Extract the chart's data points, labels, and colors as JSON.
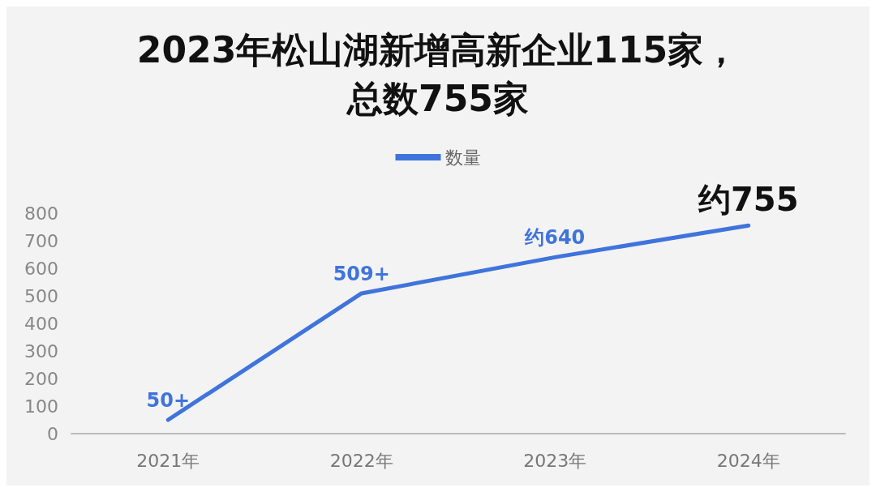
{
  "chart_data": {
    "type": "line",
    "title": "2023年松山湖新增高新企业115家，总数755家",
    "categories": [
      "2021年",
      "2022年",
      "2023年",
      "2024年"
    ],
    "series": [
      {
        "name": "数量",
        "color": "#3f74dc",
        "values": [
          50,
          509,
          640,
          755
        ],
        "value_labels": [
          "50+",
          "509+",
          "约640",
          "约755"
        ]
      }
    ],
    "ylim": [
      0,
      800
    ],
    "yticks": [
      0,
      100,
      200,
      300,
      400,
      500,
      600,
      700,
      800
    ],
    "grid": false,
    "legend": "top",
    "marker": "none",
    "line_style": "solid"
  }
}
